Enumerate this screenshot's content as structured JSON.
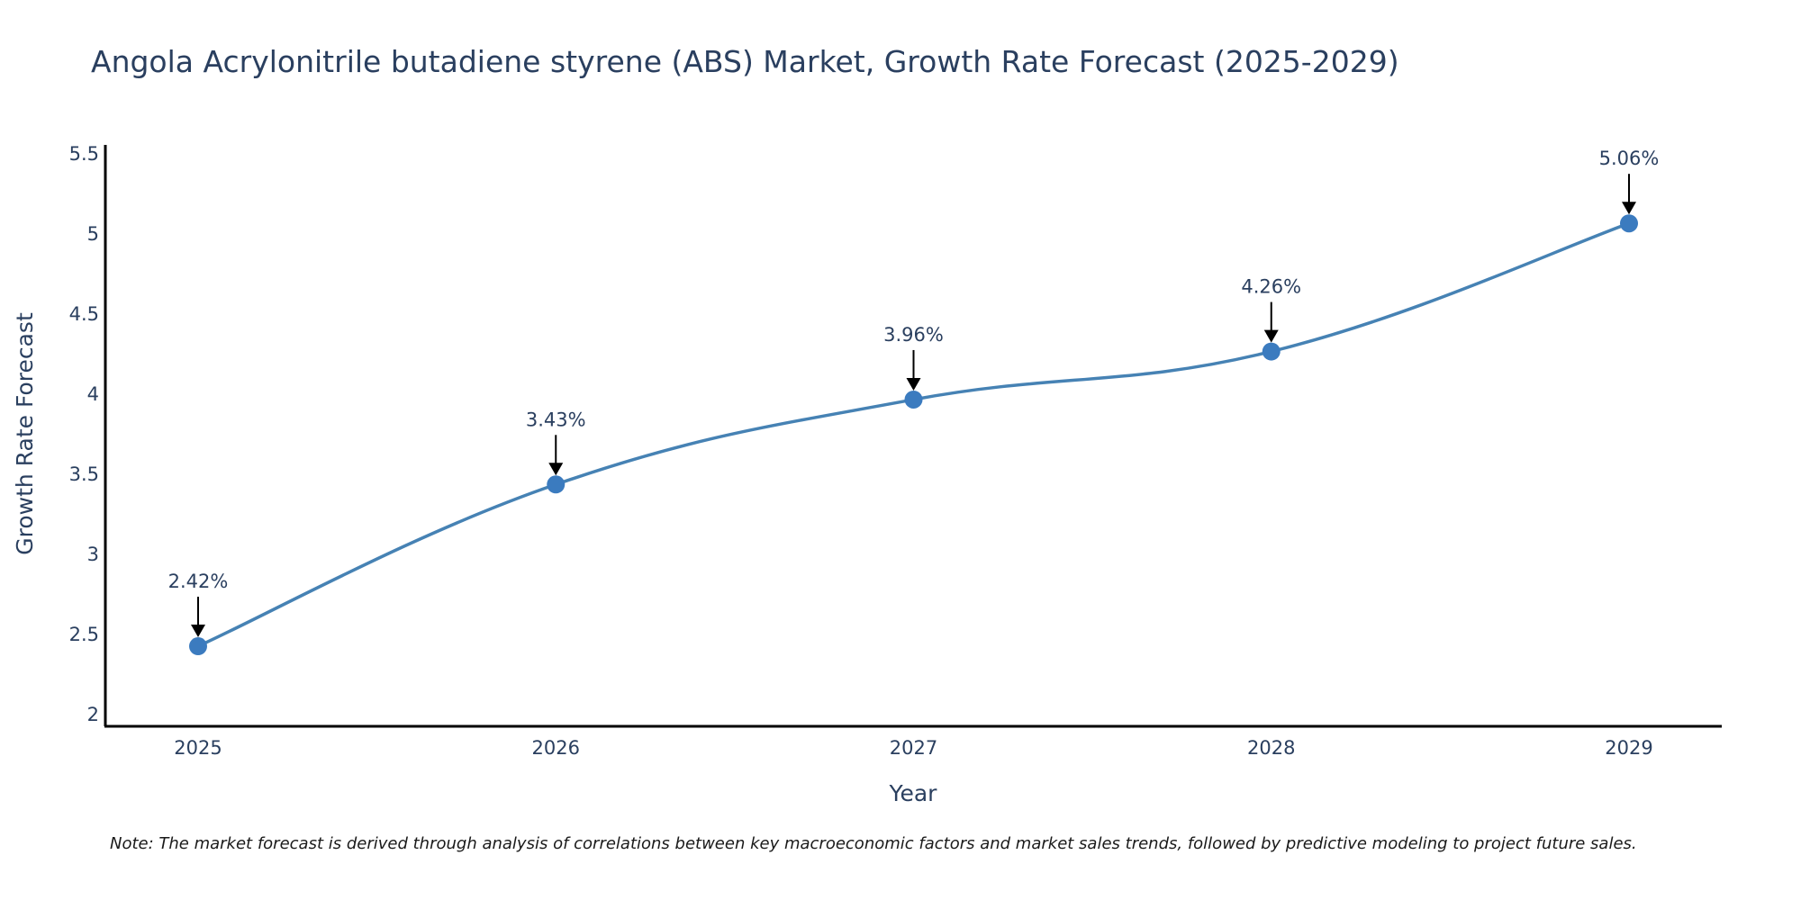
{
  "chart_data": {
    "type": "line",
    "title": "Angola Acrylonitrile butadiene styrene (ABS) Market, Growth Rate Forecast (2025-2029)",
    "xlabel": "Year",
    "ylabel": "Growth Rate Forecast",
    "categories": [
      "2025",
      "2026",
      "2027",
      "2028",
      "2029"
    ],
    "series": [
      {
        "name": "Growth Rate Forecast",
        "values": [
          2.42,
          3.43,
          3.96,
          4.26,
          5.06
        ]
      }
    ],
    "data_labels": [
      "2.42%",
      "3.43%",
      "3.96%",
      "4.26%",
      "5.06%"
    ],
    "yticks": [
      "2",
      "2.5",
      "3",
      "3.5",
      "4",
      "4.5",
      "5",
      "5.5"
    ],
    "ylim": [
      1.92,
      5.55
    ],
    "grid": false,
    "line_color": "#4682b4",
    "marker_color": "#3b7bbf",
    "note": "Note: The market forecast is derived through analysis of correlations between key macroeconomic factors and market sales trends, followed by predictive modeling to project future sales."
  }
}
